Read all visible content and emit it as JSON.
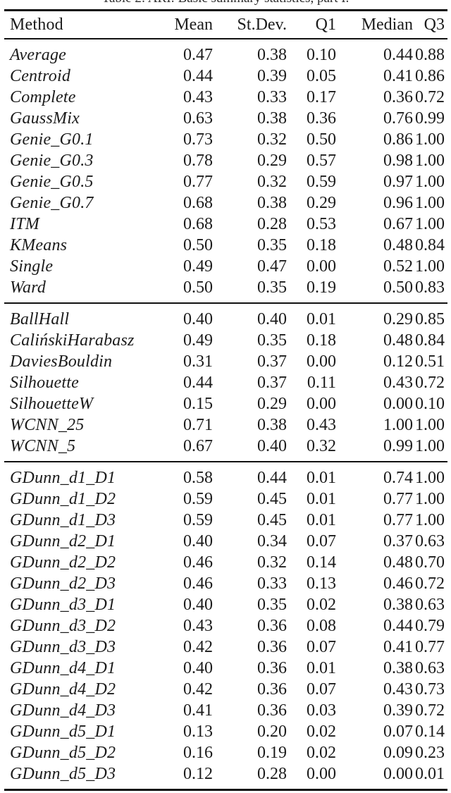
{
  "caption": "Table 2:  ARI: Basic summary statistics, part I.",
  "table": {
    "columns": [
      "Method",
      "Mean",
      "St.Dev.",
      "Q1",
      "Median",
      "Q3"
    ],
    "groups": [
      {
        "name": "clustering-methods",
        "rows": [
          {
            "method": "Average",
            "values": [
              "0.47",
              "0.38",
              "0.10",
              "0.44",
              "0.88"
            ]
          },
          {
            "method": "Centroid",
            "values": [
              "0.44",
              "0.39",
              "0.05",
              "0.41",
              "0.86"
            ]
          },
          {
            "method": "Complete",
            "values": [
              "0.43",
              "0.33",
              "0.17",
              "0.36",
              "0.72"
            ]
          },
          {
            "method": "GaussMix",
            "values": [
              "0.63",
              "0.38",
              "0.36",
              "0.76",
              "0.99"
            ]
          },
          {
            "method": "Genie_G0.1",
            "values": [
              "0.73",
              "0.32",
              "0.50",
              "0.86",
              "1.00"
            ]
          },
          {
            "method": "Genie_G0.3",
            "values": [
              "0.78",
              "0.29",
              "0.57",
              "0.98",
              "1.00"
            ]
          },
          {
            "method": "Genie_G0.5",
            "values": [
              "0.77",
              "0.32",
              "0.59",
              "0.97",
              "1.00"
            ]
          },
          {
            "method": "Genie_G0.7",
            "values": [
              "0.68",
              "0.38",
              "0.29",
              "0.96",
              "1.00"
            ]
          },
          {
            "method": "ITM",
            "values": [
              "0.68",
              "0.28",
              "0.53",
              "0.67",
              "1.00"
            ]
          },
          {
            "method": "KMeans",
            "values": [
              "0.50",
              "0.35",
              "0.18",
              "0.48",
              "0.84"
            ]
          },
          {
            "method": "Single",
            "values": [
              "0.49",
              "0.47",
              "0.00",
              "0.52",
              "1.00"
            ]
          },
          {
            "method": "Ward",
            "values": [
              "0.50",
              "0.35",
              "0.19",
              "0.50",
              "0.83"
            ]
          }
        ]
      },
      {
        "name": "internal-indices",
        "rows": [
          {
            "method": "BallHall",
            "values": [
              "0.40",
              "0.40",
              "0.01",
              "0.29",
              "0.85"
            ]
          },
          {
            "method": "CalińskiHarabasz",
            "values": [
              "0.49",
              "0.35",
              "0.18",
              "0.48",
              "0.84"
            ]
          },
          {
            "method": "DaviesBouldin",
            "values": [
              "0.31",
              "0.37",
              "0.00",
              "0.12",
              "0.51"
            ]
          },
          {
            "method": "Silhouette",
            "values": [
              "0.44",
              "0.37",
              "0.11",
              "0.43",
              "0.72"
            ]
          },
          {
            "method": "SilhouetteW",
            "values": [
              "0.15",
              "0.29",
              "0.00",
              "0.00",
              "0.10"
            ]
          },
          {
            "method": "WCNN_25",
            "values": [
              "0.71",
              "0.38",
              "0.43",
              "1.00",
              "1.00"
            ]
          },
          {
            "method": "WCNN_5",
            "values": [
              "0.67",
              "0.40",
              "0.32",
              "0.99",
              "1.00"
            ]
          }
        ]
      },
      {
        "name": "gdunn-indices",
        "rows": [
          {
            "method": "GDunn_d1_D1",
            "values": [
              "0.58",
              "0.44",
              "0.01",
              "0.74",
              "1.00"
            ]
          },
          {
            "method": "GDunn_d1_D2",
            "values": [
              "0.59",
              "0.45",
              "0.01",
              "0.77",
              "1.00"
            ]
          },
          {
            "method": "GDunn_d1_D3",
            "values": [
              "0.59",
              "0.45",
              "0.01",
              "0.77",
              "1.00"
            ]
          },
          {
            "method": "GDunn_d2_D1",
            "values": [
              "0.40",
              "0.34",
              "0.07",
              "0.37",
              "0.63"
            ]
          },
          {
            "method": "GDunn_d2_D2",
            "values": [
              "0.46",
              "0.32",
              "0.14",
              "0.48",
              "0.70"
            ]
          },
          {
            "method": "GDunn_d2_D3",
            "values": [
              "0.46",
              "0.33",
              "0.13",
              "0.46",
              "0.72"
            ]
          },
          {
            "method": "GDunn_d3_D1",
            "values": [
              "0.40",
              "0.35",
              "0.02",
              "0.38",
              "0.63"
            ]
          },
          {
            "method": "GDunn_d3_D2",
            "values": [
              "0.43",
              "0.36",
              "0.08",
              "0.44",
              "0.79"
            ]
          },
          {
            "method": "GDunn_d3_D3",
            "values": [
              "0.42",
              "0.36",
              "0.07",
              "0.41",
              "0.77"
            ]
          },
          {
            "method": "GDunn_d4_D1",
            "values": [
              "0.40",
              "0.36",
              "0.01",
              "0.38",
              "0.63"
            ]
          },
          {
            "method": "GDunn_d4_D2",
            "values": [
              "0.42",
              "0.36",
              "0.07",
              "0.43",
              "0.73"
            ]
          },
          {
            "method": "GDunn_d4_D3",
            "values": [
              "0.41",
              "0.36",
              "0.03",
              "0.39",
              "0.72"
            ]
          },
          {
            "method": "GDunn_d5_D1",
            "values": [
              "0.13",
              "0.20",
              "0.02",
              "0.07",
              "0.14"
            ]
          },
          {
            "method": "GDunn_d5_D2",
            "values": [
              "0.16",
              "0.19",
              "0.02",
              "0.09",
              "0.23"
            ]
          },
          {
            "method": "GDunn_d5_D3",
            "values": [
              "0.12",
              "0.28",
              "0.00",
              "0.00",
              "0.01"
            ]
          }
        ]
      }
    ]
  },
  "colors": {
    "text": "#1b1b1b",
    "rule": "#111111",
    "background": "#ffffff"
  }
}
